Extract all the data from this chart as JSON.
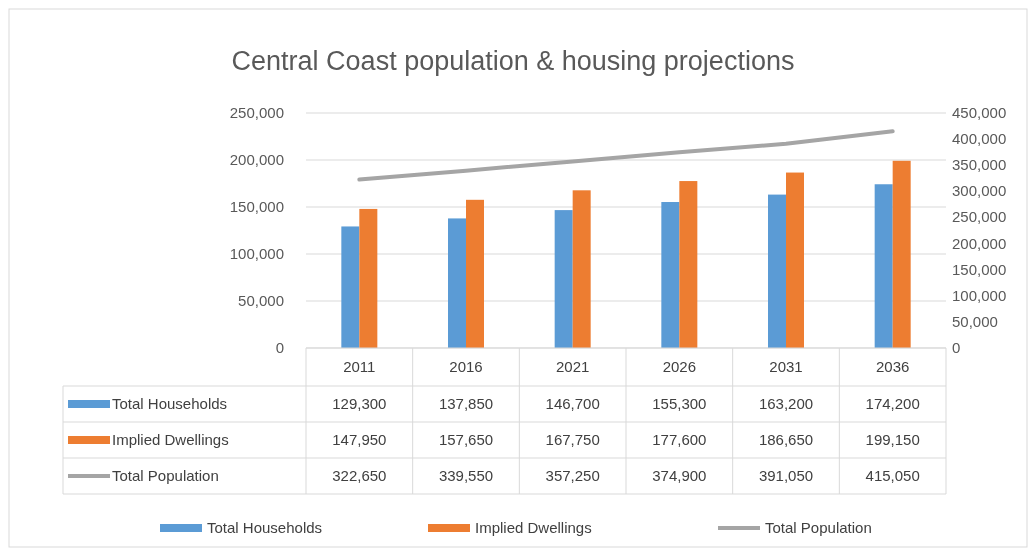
{
  "chart_data": {
    "type": "bar",
    "title": "Central Coast population & housing projections",
    "categories": [
      "2011",
      "2016",
      "2021",
      "2026",
      "2031",
      "2036"
    ],
    "series": [
      {
        "name": "Total Households",
        "color": "#5b9bd5",
        "values": [
          129300,
          137850,
          146700,
          155300,
          163200,
          174200
        ],
        "value_labels": [
          "129,300",
          "137,850",
          "146,700",
          "155,300",
          "163,200",
          "174,200"
        ]
      },
      {
        "name": "Implied Dwellings",
        "color": "#ed7d31",
        "values": [
          147950,
          157650,
          167750,
          177600,
          186650,
          199150
        ],
        "value_labels": [
          "147,950",
          "157,650",
          "167,750",
          "177,600",
          "186,650",
          "199,150"
        ]
      },
      {
        "name": "Total Population",
        "type": "line",
        "axis": "y2",
        "color": "#a5a5a5",
        "values": [
          322650,
          339550,
          357250,
          374900,
          391050,
          415050
        ],
        "value_labels": [
          "322,650",
          "339,550",
          "357,250",
          "374,900",
          "391,050",
          "415,050"
        ]
      }
    ],
    "ylim": [
      0,
      250000
    ],
    "yticks": [
      {
        "value": 0,
        "label": "0"
      },
      {
        "value": 50000,
        "label": "50,000"
      },
      {
        "value": 100000,
        "label": "100,000"
      },
      {
        "value": 150000,
        "label": "150,000"
      },
      {
        "value": 200000,
        "label": "200,000"
      },
      {
        "value": 250000,
        "label": "250,000"
      }
    ],
    "y2lim": [
      0,
      450000
    ],
    "y2ticks": [
      {
        "value": 0,
        "label": "0"
      },
      {
        "value": 50000,
        "label": "50,000"
      },
      {
        "value": 100000,
        "label": "100,000"
      },
      {
        "value": 150000,
        "label": "150,000"
      },
      {
        "value": 200000,
        "label": "200,000"
      },
      {
        "value": 250000,
        "label": "250,000"
      },
      {
        "value": 300000,
        "label": "300,000"
      },
      {
        "value": 350000,
        "label": "350,000"
      },
      {
        "value": 400000,
        "label": "400,000"
      },
      {
        "value": 450000,
        "label": "450,000"
      }
    ],
    "grid": "y",
    "legend": "bottom"
  }
}
